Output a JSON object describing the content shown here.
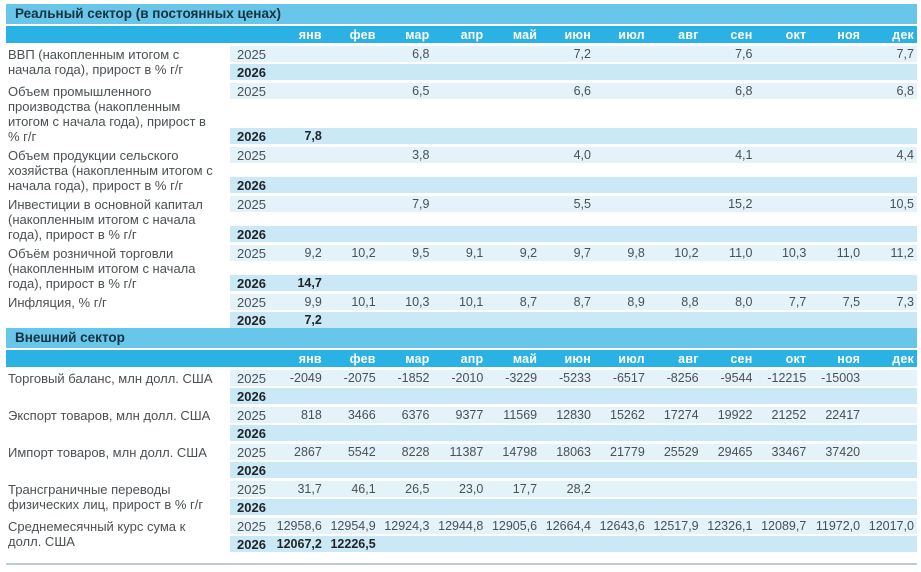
{
  "colors": {
    "section_bar": "#67c6e9",
    "month_bar": "#29b2e3",
    "row_2025_bg": "#e4f2fa",
    "row_2026_bg": "#cbe8f6"
  },
  "year_labels": {
    "y2025": "2025",
    "y2026": "2026"
  },
  "months": [
    "янв",
    "фев",
    "мар",
    "апр",
    "май",
    "июн",
    "июл",
    "авг",
    "сен",
    "окт",
    "ноя",
    "дек"
  ],
  "sections": [
    {
      "title": "Реальный сектор (в постоянных ценах)",
      "indicators": [
        {
          "label": "ВВП (накопленным итогом с начала года), прирост в % г/г",
          "y2025": [
            "",
            "",
            "6,8",
            "",
            "",
            "7,2",
            "",
            "",
            "7,6",
            "",
            "",
            "7,7"
          ],
          "y2026": [
            "",
            "",
            "",
            "",
            "",
            "",
            "",
            "",
            "",
            "",
            "",
            ""
          ]
        },
        {
          "label": "Объем промышленного производства (накопленным итогом с начала года), прирост в % г/г",
          "y2025": [
            "",
            "",
            "6,5",
            "",
            "",
            "6,6",
            "",
            "",
            "6,8",
            "",
            "",
            "6,8"
          ],
          "y2026": [
            "7,8",
            "",
            "",
            "",
            "",
            "",
            "",
            "",
            "",
            "",
            "",
            ""
          ]
        },
        {
          "label": "Объем продукции сельского хозяйства (накопленным итогом с начала года), прирост в % г/г",
          "y2025": [
            "",
            "",
            "3,8",
            "",
            "",
            "4,0",
            "",
            "",
            "4,1",
            "",
            "",
            "4,4"
          ],
          "y2026": [
            "",
            "",
            "",
            "",
            "",
            "",
            "",
            "",
            "",
            "",
            "",
            ""
          ]
        },
        {
          "label": "Инвестиции в основной капитал (накопленным итогом с начала года), прирост в % г/г",
          "y2025": [
            "",
            "",
            "7,9",
            "",
            "",
            "5,5",
            "",
            "",
            "15,2",
            "",
            "",
            "10,5"
          ],
          "y2026": [
            "",
            "",
            "",
            "",
            "",
            "",
            "",
            "",
            "",
            "",
            "",
            ""
          ]
        },
        {
          "label": "Объём розничной торговли (накопленным итогом с начала года), прирост в % г/г",
          "y2025": [
            "9,2",
            "10,2",
            "9,5",
            "9,1",
            "9,2",
            "9,7",
            "9,8",
            "10,2",
            "11,0",
            "10,3",
            "11,0",
            "11,2"
          ],
          "y2026": [
            "14,7",
            "",
            "",
            "",
            "",
            "",
            "",
            "",
            "",
            "",
            "",
            ""
          ]
        },
        {
          "label": "Инфляция, % г/г",
          "y2025": [
            "9,9",
            "10,1",
            "10,3",
            "10,1",
            "8,7",
            "8,7",
            "8,9",
            "8,8",
            "8,0",
            "7,7",
            "7,5",
            "7,3"
          ],
          "y2026": [
            "7,2",
            "",
            "",
            "",
            "",
            "",
            "",
            "",
            "",
            "",
            "",
            ""
          ]
        }
      ]
    },
    {
      "title": "Внешний сектор",
      "indicators": [
        {
          "label": "Торговый баланс, млн долл. США",
          "y2025": [
            "-2049",
            "-2075",
            "-1852",
            "-2010",
            "-3229",
            "-5233",
            "-6517",
            "-8256",
            "-9544",
            "-12215",
            "-15003",
            ""
          ],
          "y2026": [
            "",
            "",
            "",
            "",
            "",
            "",
            "",
            "",
            "",
            "",
            "",
            ""
          ]
        },
        {
          "label": "Экспорт товаров, млн долл. США",
          "y2025": [
            "818",
            "3466",
            "6376",
            "9377",
            "11569",
            "12830",
            "15262",
            "17274",
            "19922",
            "21252",
            "22417",
            ""
          ],
          "y2026": [
            "",
            "",
            "",
            "",
            "",
            "",
            "",
            "",
            "",
            "",
            "",
            ""
          ]
        },
        {
          "label": "Импорт товаров, млн долл. США",
          "y2025": [
            "2867",
            "5542",
            "8228",
            "11387",
            "14798",
            "18063",
            "21779",
            "25529",
            "29465",
            "33467",
            "37420",
            ""
          ],
          "y2026": [
            "",
            "",
            "",
            "",
            "",
            "",
            "",
            "",
            "",
            "",
            "",
            ""
          ]
        },
        {
          "label": "Трансграничные переводы физических лиц, прирост в % г/г",
          "y2025": [
            "31,7",
            "46,1",
            "26,5",
            "23,0",
            "17,7",
            "28,2",
            "",
            "",
            "",
            "",
            "",
            ""
          ],
          "y2026": [
            "",
            "",
            "",
            "",
            "",
            "",
            "",
            "",
            "",
            "",
            "",
            ""
          ]
        },
        {
          "label": "Среднемесячный курс сума к долл. США",
          "y2025": [
            "12958,6",
            "12954,9",
            "12924,3",
            "12944,8",
            "12905,6",
            "12664,4",
            "12643,6",
            "12517,9",
            "12326,1",
            "12089,7",
            "11972,0",
            "12017,0"
          ],
          "y2026": [
            "12067,2",
            "12226,5",
            "",
            "",
            "",
            "",
            "",
            "",
            "",
            "",
            "",
            ""
          ]
        }
      ]
    }
  ]
}
